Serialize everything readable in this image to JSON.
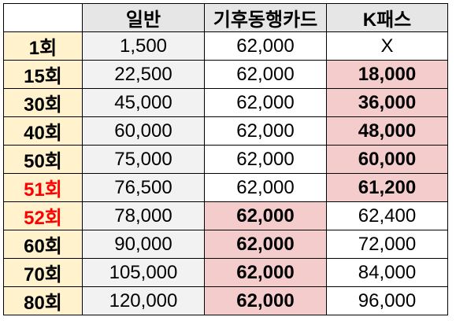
{
  "headers": [
    "일반",
    "기후동행카드",
    "K패스"
  ],
  "colors": {
    "header_bg": "#e7e6e6",
    "row_header_bg": "#fff2cc",
    "regular_bg": "#f2f2f2",
    "best_bg": "#f4cccc",
    "best_text": "#ff0000"
  },
  "rows": [
    {
      "label": "1회",
      "label_highlight": false,
      "regular": "1,500",
      "card": "62,000",
      "kpass": "X",
      "best": "none"
    },
    {
      "label": "15회",
      "label_highlight": false,
      "regular": "22,500",
      "card": "62,000",
      "kpass": "18,000",
      "best": "kpass"
    },
    {
      "label": "30회",
      "label_highlight": false,
      "regular": "45,000",
      "card": "62,000",
      "kpass": "36,000",
      "best": "kpass"
    },
    {
      "label": "40회",
      "label_highlight": false,
      "regular": "60,000",
      "card": "62,000",
      "kpass": "48,000",
      "best": "kpass"
    },
    {
      "label": "50회",
      "label_highlight": false,
      "regular": "75,000",
      "card": "62,000",
      "kpass": "60,000",
      "best": "kpass"
    },
    {
      "label": "51회",
      "label_highlight": true,
      "regular": "76,500",
      "card": "62,000",
      "kpass": "61,200",
      "best": "kpass"
    },
    {
      "label": "52회",
      "label_highlight": true,
      "regular": "78,000",
      "card": "62,000",
      "kpass": "62,400",
      "best": "card"
    },
    {
      "label": "60회",
      "label_highlight": false,
      "regular": "90,000",
      "card": "62,000",
      "kpass": "72,000",
      "best": "card"
    },
    {
      "label": "70회",
      "label_highlight": false,
      "regular": "105,000",
      "card": "62,000",
      "kpass": "84,000",
      "best": "card"
    },
    {
      "label": "80회",
      "label_highlight": false,
      "regular": "120,000",
      "card": "62,000",
      "kpass": "96,000",
      "best": "card"
    }
  ]
}
